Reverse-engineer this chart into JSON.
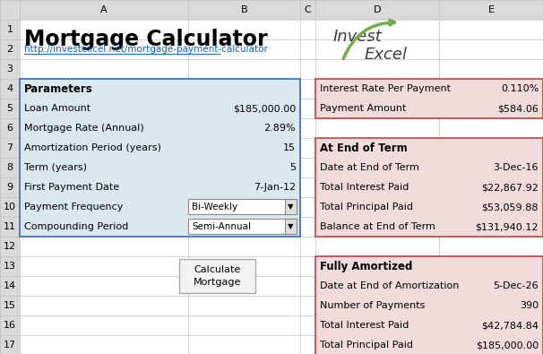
{
  "title": "Mortgage Calculator",
  "url": "http://investexcel.net/mortgage-payment-calculator",
  "params_label": "Parameters",
  "params": [
    [
      "Loan Amount",
      "$185,000.00"
    ],
    [
      "Mortgage Rate (Annual)",
      "2.89%"
    ],
    [
      "Amortization Period (years)",
      "15"
    ],
    [
      "Term (years)",
      "5"
    ],
    [
      "First Payment Date",
      "7-Jan-12"
    ],
    [
      "Payment Frequency",
      "Bi-Weekly"
    ],
    [
      "Compounding Period",
      "Semi-Annual"
    ]
  ],
  "payment_info": [
    [
      "Interest Rate Per Payment",
      "0.110%"
    ],
    [
      "Payment Amount",
      "$584.06"
    ]
  ],
  "end_of_term_label": "At End of Term",
  "end_of_term": [
    [
      "Date at End of Term",
      "3-Dec-16"
    ],
    [
      "Total Interest Paid",
      "$22,867.92"
    ],
    [
      "Total Principal Paid",
      "$53,059.88"
    ],
    [
      "Balance at End of Term",
      "$131,940.12"
    ]
  ],
  "fully_amortized_label": "Fully Amortized",
  "fully_amortized": [
    [
      "Date at End of Amortization",
      "5-Dec-26"
    ],
    [
      "Number of Payments",
      "390"
    ],
    [
      "Total Interest Paid",
      "$42,784.84"
    ],
    [
      "Total Principal Paid",
      "$185,000.00"
    ]
  ],
  "bg_color": "#D9D9D9",
  "sheet_bg": "#FFFFFF",
  "col_header_color": "#D9D9D9",
  "params_bg": "#DAE8F0",
  "params_border": "#4472C4",
  "right_section_bg": "#F2DCDB",
  "right_section_border": "#C0504D",
  "button_bg": "#F2F2F2",
  "button_border": "#AAAAAA",
  "url_color": "#0563C1",
  "arrow_color": "#70AD47",
  "grid_color": "#C0C0C0"
}
